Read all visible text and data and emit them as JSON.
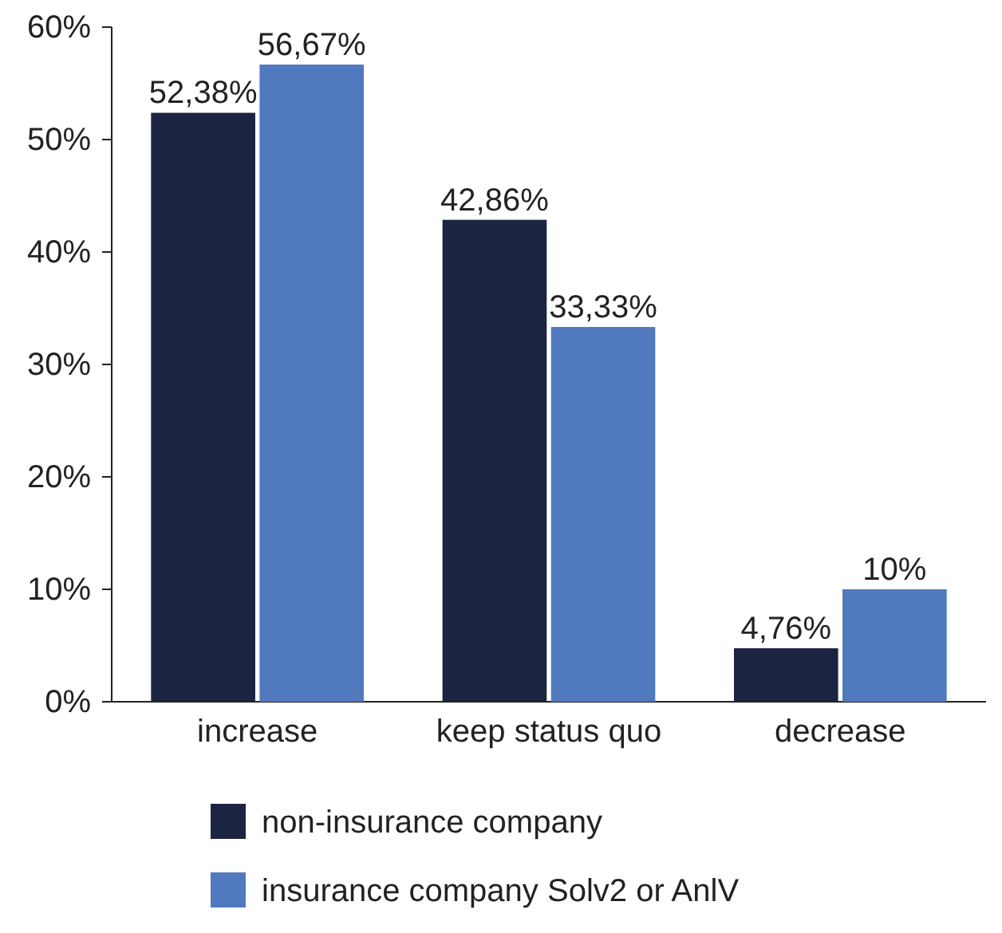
{
  "chart_data": {
    "type": "bar",
    "categories": [
      "increase",
      "keep status quo",
      "decrease"
    ],
    "series": [
      {
        "name": "non-insurance company",
        "color": "#1b2440",
        "values": [
          52.38,
          42.86,
          4.76
        ],
        "value_labels": [
          "52,38%",
          "42,86%",
          "4,76%"
        ]
      },
      {
        "name": "insurance company Solv2 or AnlV",
        "color": "#5079be",
        "values": [
          56.67,
          33.33,
          10
        ],
        "value_labels": [
          "56,67%",
          "33,33%",
          "10%"
        ]
      }
    ],
    "ylim": [
      0,
      60
    ],
    "yticks": [
      {
        "value": 0,
        "label": "0%"
      },
      {
        "value": 10,
        "label": "10%"
      },
      {
        "value": 20,
        "label": "20%"
      },
      {
        "value": 30,
        "label": "30%"
      },
      {
        "value": 40,
        "label": "40%"
      },
      {
        "value": 50,
        "label": "50%"
      },
      {
        "value": 60,
        "label": "60%"
      }
    ],
    "legend": "bottom",
    "grid": false
  }
}
